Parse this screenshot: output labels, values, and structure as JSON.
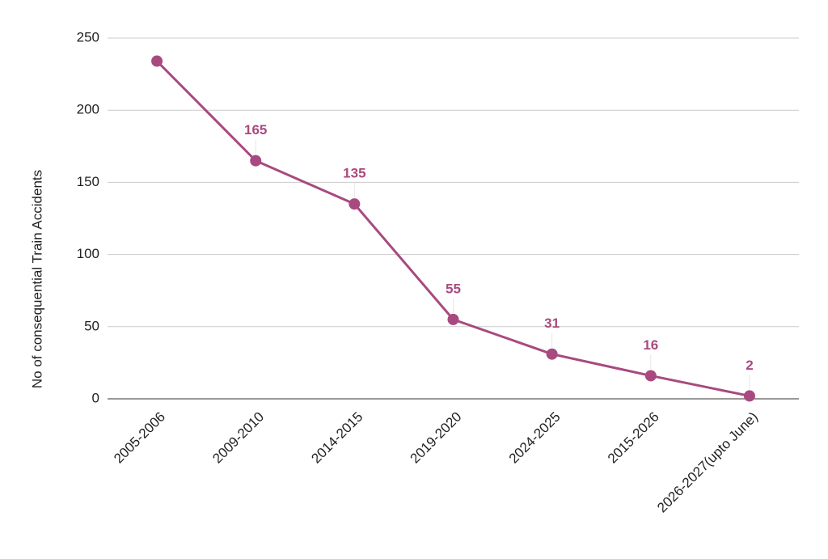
{
  "chart_data": {
    "type": "line",
    "y_axis_label": "No of consequential Train Accidents",
    "categories": [
      "2005-2006",
      "2009-2010",
      "2014-2015",
      "2019-2020",
      "2024-2025",
      "2015-2026",
      "2026-2027(upto June)"
    ],
    "series": [
      {
        "color": "#a84a7f",
        "values": [
          234,
          165,
          135,
          55,
          31,
          16,
          2
        ],
        "value_labels": [
          null,
          "165",
          "135",
          "55",
          "31",
          "16",
          "2"
        ]
      }
    ],
    "ylim": [
      0,
      250
    ],
    "yticks": [
      0,
      50,
      100,
      150,
      200,
      250
    ],
    "grid": true
  }
}
